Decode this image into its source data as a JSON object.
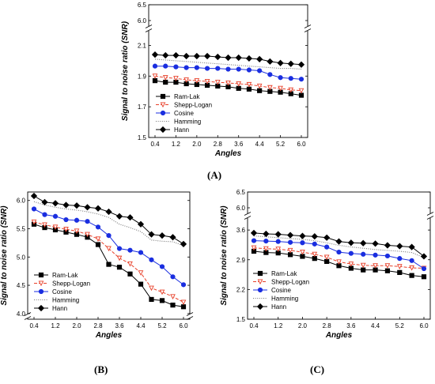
{
  "panel_captions": [
    "(A)",
    "(B)",
    "(C)"
  ],
  "chart_data": [
    {
      "type": "line",
      "panel": "(A)",
      "title": "",
      "xlabel": "Angles",
      "ylabel": "Signal to noise ratio (SNR)",
      "x_ticks": [
        "0.4",
        "1.2",
        "2.0",
        "2.8",
        "3.6",
        "4.4",
        "5.2",
        "6.0"
      ],
      "y_ticks": [
        "1.5",
        "1.7",
        "1.9",
        "2.1",
        "6.0",
        "6.5"
      ],
      "ylim_lower": [
        1.5,
        2.2
      ],
      "ylim_upper": [
        5.8,
        6.5
      ],
      "axis_break": true,
      "x": [
        0.4,
        0.8,
        1.2,
        1.6,
        2.0,
        2.4,
        2.8,
        3.2,
        3.6,
        4.0,
        4.4,
        4.8,
        5.2,
        5.6,
        6.0
      ],
      "legend_position": "bottom-left",
      "series": [
        {
          "name": "Ram-Lak",
          "color": "#000000",
          "marker": "square",
          "dash": "solid",
          "values": [
            1.87,
            1.86,
            1.86,
            1.85,
            1.845,
            1.84,
            1.835,
            1.83,
            1.82,
            1.815,
            1.805,
            1.8,
            1.795,
            1.785,
            1.775
          ]
        },
        {
          "name": "Shepp-Logan",
          "color": "#e8402a",
          "marker": "triangle-down",
          "dash": "dash",
          "values": [
            1.9,
            1.89,
            1.885,
            1.875,
            1.87,
            1.865,
            1.86,
            1.855,
            1.85,
            1.845,
            1.835,
            1.825,
            1.82,
            1.81,
            1.805
          ]
        },
        {
          "name": "Cosine",
          "color": "#1a2ee0",
          "marker": "circle",
          "dash": "solid",
          "values": [
            1.965,
            1.965,
            1.96,
            1.955,
            1.955,
            1.95,
            1.95,
            1.945,
            1.945,
            1.94,
            1.935,
            1.91,
            1.89,
            1.885,
            1.88
          ]
        },
        {
          "name": "Hamming",
          "color": "#777777",
          "marker": "none",
          "dash": "dot",
          "values": [
            2.01,
            2.005,
            2.0,
            1.995,
            1.99,
            1.985,
            1.98,
            1.975,
            1.97,
            1.965,
            1.96,
            1.955,
            1.95,
            1.95,
            1.945
          ]
        },
        {
          "name": "Hann",
          "color": "#000000",
          "marker": "diamond",
          "dash": "solid",
          "values": [
            2.04,
            2.035,
            2.035,
            2.03,
            2.03,
            2.03,
            2.025,
            2.02,
            2.02,
            2.015,
            2.01,
            1.995,
            1.985,
            1.98,
            1.975
          ]
        }
      ]
    },
    {
      "type": "line",
      "panel": "(B)",
      "title": "",
      "xlabel": "Angles",
      "ylabel": "Signal to noise ratio (SNR)",
      "x_ticks": [
        "0.4",
        "1.2",
        "2.0",
        "2.8",
        "3.6",
        "4.4",
        "5.2",
        "6.0"
      ],
      "y_ticks": [
        "4.0",
        "4.5",
        "5.0",
        "5.5",
        "6.0"
      ],
      "ylim": [
        3.9,
        6.15
      ],
      "axis_break": true,
      "x": [
        0.4,
        0.8,
        1.2,
        1.6,
        2.0,
        2.4,
        2.8,
        3.2,
        3.6,
        4.0,
        4.4,
        4.8,
        5.2,
        5.6,
        6.0
      ],
      "legend_position": "bottom-left",
      "series": [
        {
          "name": "Ram-Lak",
          "color": "#000000",
          "marker": "square",
          "dash": "solid",
          "values": [
            5.58,
            5.52,
            5.48,
            5.44,
            5.4,
            5.35,
            5.22,
            4.87,
            4.82,
            4.7,
            4.52,
            4.25,
            4.23,
            4.15,
            4.12
          ]
        },
        {
          "name": "Shepp-Logan",
          "color": "#e8402a",
          "marker": "triangle-down",
          "dash": "dash",
          "values": [
            5.62,
            5.57,
            5.53,
            5.49,
            5.46,
            5.4,
            5.32,
            5.15,
            4.98,
            4.88,
            4.72,
            4.45,
            4.38,
            4.3,
            4.2
          ]
        },
        {
          "name": "Cosine",
          "color": "#1a2ee0",
          "marker": "circle",
          "dash": "solid",
          "values": [
            5.85,
            5.75,
            5.72,
            5.66,
            5.65,
            5.63,
            5.53,
            5.38,
            5.15,
            5.12,
            5.08,
            4.95,
            4.83,
            4.65,
            4.51
          ]
        },
        {
          "name": "Hamming",
          "color": "#777777",
          "marker": "none",
          "dash": "dot",
          "values": [
            5.98,
            5.92,
            5.88,
            5.85,
            5.83,
            5.8,
            5.76,
            5.7,
            5.58,
            5.52,
            5.45,
            5.3,
            5.28,
            5.27,
            5.2
          ]
        },
        {
          "name": "Hann",
          "color": "#000000",
          "marker": "diamond",
          "dash": "solid",
          "values": [
            6.08,
            5.97,
            5.95,
            5.92,
            5.91,
            5.88,
            5.86,
            5.8,
            5.72,
            5.7,
            5.58,
            5.4,
            5.38,
            5.35,
            5.23
          ]
        }
      ]
    },
    {
      "type": "line",
      "panel": "(C)",
      "title": "",
      "xlabel": "Angles",
      "ylabel": "Signal to noise ratio (SNR)",
      "x_ticks": [
        "0.4",
        "1.2",
        "2.0",
        "2.8",
        "3.6",
        "4.4",
        "5.2",
        "6.0"
      ],
      "y_ticks": [
        "1.5",
        "2.2",
        "2.9",
        "3.6",
        "6.0",
        "6.5"
      ],
      "ylim_lower": [
        1.5,
        3.9
      ],
      "ylim_upper": [
        5.8,
        6.5
      ],
      "axis_break": true,
      "x": [
        0.4,
        0.8,
        1.2,
        1.6,
        2.0,
        2.4,
        2.8,
        3.2,
        3.6,
        4.0,
        4.4,
        4.8,
        5.2,
        5.6,
        6.0
      ],
      "legend_position": "bottom-left",
      "series": [
        {
          "name": "Ram-Lak",
          "color": "#000000",
          "marker": "square",
          "dash": "solid",
          "values": [
            3.1,
            3.07,
            3.06,
            3.02,
            2.98,
            2.93,
            2.86,
            2.76,
            2.7,
            2.66,
            2.66,
            2.64,
            2.6,
            2.53,
            2.5
          ]
        },
        {
          "name": "Shepp-Logan",
          "color": "#e8402a",
          "marker": "triangle-down",
          "dash": "dash",
          "values": [
            3.18,
            3.16,
            3.15,
            3.12,
            3.08,
            3.03,
            2.96,
            2.85,
            2.8,
            2.77,
            2.76,
            2.76,
            2.74,
            2.71,
            2.7
          ]
        },
        {
          "name": "Cosine",
          "color": "#1a2ee0",
          "marker": "circle",
          "dash": "solid",
          "values": [
            3.35,
            3.34,
            3.33,
            3.31,
            3.3,
            3.27,
            3.2,
            3.08,
            3.05,
            3.03,
            3.01,
            2.99,
            2.93,
            2.88,
            2.69
          ]
        },
        {
          "name": "Hamming",
          "color": "#777777",
          "marker": "none",
          "dash": "dot",
          "values": [
            3.46,
            3.44,
            3.42,
            3.4,
            3.38,
            3.35,
            3.3,
            3.24,
            3.2,
            3.17,
            3.14,
            3.12,
            3.1,
            3.07,
            2.95
          ]
        },
        {
          "name": "Hann",
          "color": "#000000",
          "marker": "diamond",
          "dash": "solid",
          "values": [
            3.53,
            3.51,
            3.5,
            3.48,
            3.46,
            3.45,
            3.42,
            3.33,
            3.3,
            3.29,
            3.28,
            3.24,
            3.22,
            3.2,
            2.98
          ]
        }
      ]
    }
  ]
}
